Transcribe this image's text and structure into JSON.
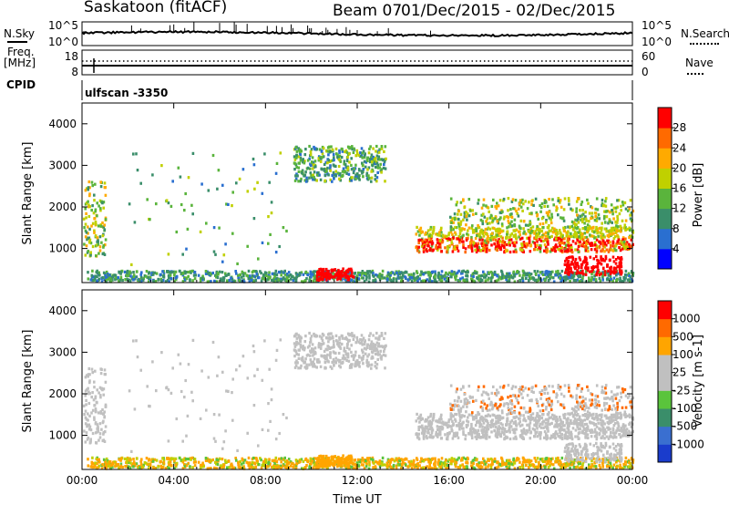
{
  "header": {
    "station": "Saskatoon (fitACF)",
    "beam": "Beam 07",
    "dates": "01/Dec/2015 - 02/Dec/2015"
  },
  "noise_panel": {
    "left_label": "N.Sky",
    "right_label": "N.Search",
    "left_ticks": [
      "10^5",
      "10^0"
    ],
    "right_ticks": [
      "10^5",
      "10^0"
    ]
  },
  "freq_panel": {
    "left_label_top": "Freq.",
    "left_label_unit": "[MHz]",
    "right_label": "Nave",
    "left_ticks": [
      "18",
      "8"
    ],
    "right_ticks": [
      "60",
      "0"
    ]
  },
  "cpid": {
    "label": "CPID",
    "value": "ulfscan -3350"
  },
  "colors": {
    "noise_line": "#000000",
    "gs_grey": "#c0c0c0"
  },
  "chart_data": [
    {
      "type": "heatmap",
      "parameter": "power",
      "xlabel": "",
      "ylabel": "Slant Range [km]",
      "x_ticks": [
        "00:00",
        "04:00",
        "08:00",
        "12:00",
        "16:00",
        "20:00",
        "00:00"
      ],
      "x_range_hours": [
        0,
        24
      ],
      "ylim": [
        180,
        4500
      ],
      "y_ticks": [
        1000,
        2000,
        3000,
        4000
      ],
      "colorbar": {
        "label": "Power [dB]",
        "ticks": [
          "4",
          "8",
          "12",
          "16",
          "20",
          "24",
          "28"
        ],
        "stops": [
          "#0000ff",
          "#2a6fd0",
          "#3a8e6a",
          "#5ab43c",
          "#c0d000",
          "#ffaa00",
          "#ff6a00",
          "#ff0000"
        ]
      }
    },
    {
      "type": "heatmap",
      "parameter": "velocity",
      "xlabel": "Time UT",
      "ylabel": "Slant Range [km]",
      "x_ticks": [
        "00:00",
        "04:00",
        "08:00",
        "12:00",
        "16:00",
        "20:00",
        "00:00"
      ],
      "x_range_hours": [
        0,
        24
      ],
      "ylim": [
        180,
        4500
      ],
      "y_ticks": [
        1000,
        2000,
        3000,
        4000
      ],
      "colorbar": {
        "label": "Velocity [m s-1]",
        "ticks": [
          "1000",
          "500",
          "100",
          "25",
          "-25",
          "-100",
          "-500",
          "-1000"
        ],
        "stops": [
          "#1a3ccc",
          "#3a6fd0",
          "#3a8e6a",
          "#5ac43c",
          "#c0c0c0",
          "#c0c0c0",
          "#ffa500",
          "#ff6a00",
          "#ff0000"
        ]
      }
    }
  ]
}
